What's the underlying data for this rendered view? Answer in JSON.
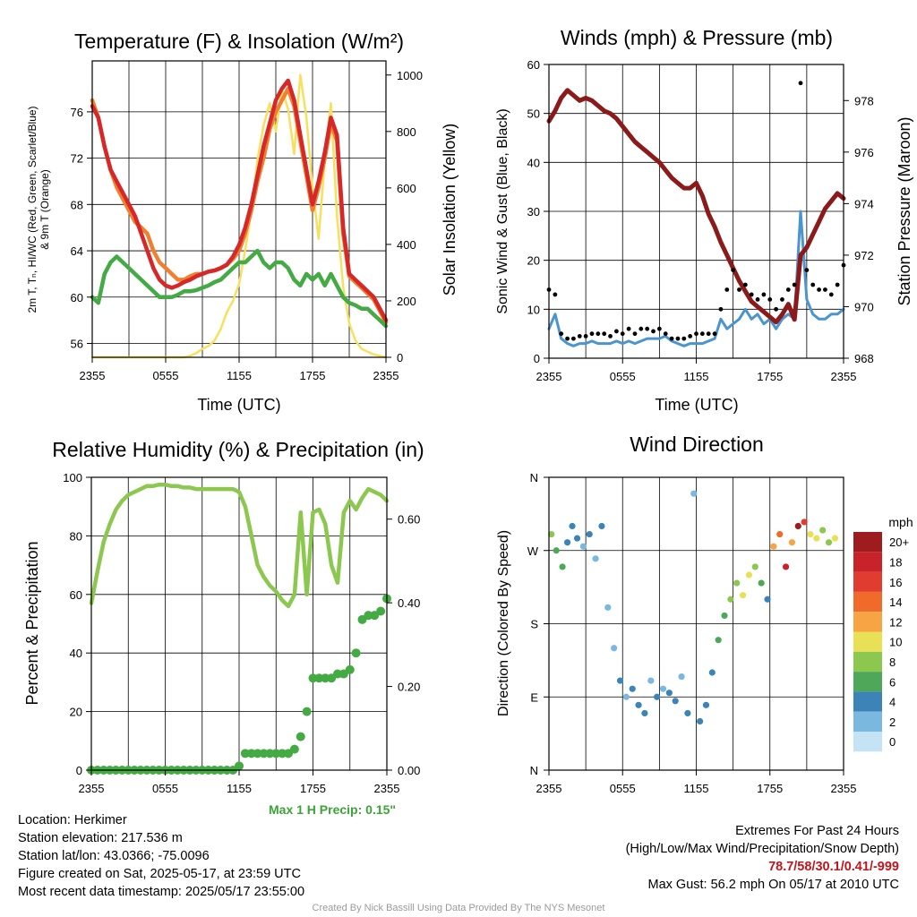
{
  "colors": {
    "temp": "#d62828",
    "dew": "#44aa44",
    "nine_m": "#f08030",
    "solar": "#f6e05e",
    "wind": "#4a95d0",
    "gust": "#000000",
    "pressure": "#8b1a1a",
    "rh": "#8cc850",
    "precip": "#44aa44"
  },
  "charts": {
    "temp": {
      "type": "line",
      "title": "Temperature (F) & Insolation (W/m²)",
      "ylabel_left_1": "2m T, Tₙ, HI/WC (Red, Green, Scarlet/Blue)",
      "ylabel_left_2": "& 9m T (Orange)",
      "ylabel_right": "Solar Insolation (Yellow)",
      "xlabel": "Time (UTC)",
      "x_ticks": [
        "2355",
        "0555",
        "1155",
        "1755",
        "2355"
      ],
      "y_left_ticks": [
        "56",
        "60",
        "64",
        "68",
        "72",
        "76"
      ],
      "y_right_ticks": [
        "0",
        "200",
        "400",
        "600",
        "800",
        "1000"
      ]
    },
    "wind": {
      "type": "line",
      "title": "Winds (mph) & Pressure (mb)",
      "ylabel_left": "Sonic Wind & Gust (Blue, Black)",
      "ylabel_right": "Station Pressure (Maroon)",
      "xlabel": "Time (UTC)",
      "x_ticks": [
        "2355",
        "0555",
        "1155",
        "1755",
        "2355"
      ],
      "y_left_ticks": [
        "0",
        "10",
        "20",
        "30",
        "40",
        "50",
        "60"
      ],
      "y_right_ticks": [
        "968",
        "970",
        "972",
        "974",
        "976",
        "978"
      ]
    },
    "rh": {
      "type": "line",
      "title": "Relative Humidity (%) & Precipitation (in)",
      "ylabel_left": "Percent & Precipitation",
      "x_ticks": [
        "2355",
        "0555",
        "1155",
        "1755",
        "2355"
      ],
      "y_left_ticks": [
        "0",
        "20",
        "40",
        "60",
        "80",
        "100"
      ],
      "y_right_ticks": [
        "0.00",
        "0.20",
        "0.40",
        "0.60"
      ],
      "max_precip": "Max 1 H Precip: 0.15\""
    },
    "dir": {
      "type": "scatter",
      "title": "Wind Direction",
      "ylabel_left": "Direction (Colored By Speed)",
      "x_ticks": [
        "2355",
        "0555",
        "1155",
        "1755",
        "2355"
      ],
      "y_ticks": [
        "N",
        "E",
        "S",
        "W",
        "N"
      ],
      "legend_title": "mph",
      "legend_labels": [
        "20+",
        "18",
        "16",
        "14",
        "12",
        "10",
        "8",
        "6",
        "4",
        "2",
        "0"
      ],
      "legend_colors": [
        "#9e1b1e",
        "#c8222a",
        "#e03c30",
        "#f06a2a",
        "#f7a544",
        "#e8e055",
        "#8cc850",
        "#4fa85a",
        "#3c84b8",
        "#7ab8e0",
        "#c4e4f6"
      ]
    }
  },
  "chart_data": [
    {
      "type": "line",
      "title": "Temperature (F) & Insolation (W/m²)",
      "x_hours": [
        0,
        0.5,
        1,
        1.5,
        2,
        2.5,
        3,
        3.5,
        4,
        4.5,
        5,
        5.5,
        6,
        6.5,
        7,
        7.5,
        8,
        8.5,
        9,
        9.5,
        10,
        10.5,
        11,
        11.5,
        12,
        12.5,
        13,
        13.5,
        14,
        14.5,
        15,
        15.5,
        16,
        16.5,
        17,
        17.5,
        18,
        18.5,
        19,
        19.5,
        20,
        20.5,
        21,
        21.5,
        22,
        22.5,
        23,
        23.5,
        24
      ],
      "series": [
        {
          "name": "Red",
          "values": [
            76.5,
            75.5,
            73,
            71,
            70,
            69,
            68,
            67,
            65.5,
            64,
            62.5,
            61.5,
            61,
            60.8,
            61,
            61.3,
            61.5,
            61.8,
            62,
            62.2,
            62.3,
            62.5,
            62.8,
            63.5,
            64.5,
            66,
            68,
            70.5,
            73,
            75,
            77,
            78,
            78.7,
            77,
            74,
            71,
            68,
            70,
            72.5,
            75.5,
            74,
            66,
            62,
            61.5,
            61,
            60.5,
            60,
            59,
            58
          ]
        },
        {
          "name": "Green",
          "values": [
            60,
            59.5,
            62,
            63,
            63.5,
            63,
            62.5,
            62,
            61.5,
            61,
            60.5,
            60,
            60,
            60,
            60.2,
            60.5,
            60.5,
            60.6,
            60.8,
            61,
            61.3,
            61.5,
            62,
            62.5,
            63,
            63,
            63.5,
            64,
            63,
            62.5,
            63,
            63,
            62.5,
            61.5,
            61,
            62,
            61.5,
            62,
            61,
            62,
            61,
            60,
            59.5,
            59.3,
            59,
            59,
            58.5,
            58,
            57.5
          ]
        },
        {
          "name": "Orange",
          "values": [
            77,
            75.5,
            73,
            71,
            69.5,
            68.5,
            67.5,
            66.5,
            66,
            65.5,
            64,
            63,
            62.5,
            62,
            61.5,
            61.5,
            61.8,
            62,
            62,
            62.2,
            62.3,
            62.5,
            62.8,
            63.3,
            64,
            65.5,
            67.5,
            70,
            72,
            74.5,
            76,
            77,
            78,
            76.5,
            73.5,
            70.5,
            67.5,
            69.5,
            72,
            75,
            73.5,
            65.5,
            61.8,
            61.3,
            60.8,
            60.3,
            59.8,
            58.8,
            57.8
          ]
        },
        {
          "name": "Yellow",
          "values": [
            0,
            0,
            0,
            0,
            0,
            0,
            0,
            0,
            0,
            0,
            0,
            0,
            0,
            0,
            0,
            0,
            5,
            15,
            30,
            40,
            60,
            100,
            160,
            200,
            260,
            380,
            520,
            700,
            820,
            900,
            800,
            950,
            880,
            720,
            1000,
            850,
            600,
            420,
            700,
            900,
            500,
            250,
            120,
            60,
            30,
            20,
            10,
            5,
            0
          ]
        }
      ]
    },
    {
      "type": "line",
      "title": "Winds (mph) & Pressure (mb)",
      "x_hours": [
        0,
        0.5,
        1,
        1.5,
        2,
        2.5,
        3,
        3.5,
        4,
        4.5,
        5,
        5.5,
        6,
        6.5,
        7,
        7.5,
        8,
        8.5,
        9,
        9.5,
        10,
        10.5,
        11,
        11.5,
        12,
        12.5,
        13,
        13.5,
        14,
        14.5,
        15,
        15.5,
        16,
        16.5,
        17,
        17.5,
        18,
        18.5,
        19,
        19.5,
        20,
        20.5,
        21,
        21.5,
        22,
        22.5,
        23,
        23.5,
        24
      ],
      "series": [
        {
          "name": "Blue",
          "values": [
            6,
            9,
            4,
            3,
            2.5,
            3,
            3,
            3.5,
            3,
            3,
            3,
            3.5,
            3,
            3.5,
            3,
            3.5,
            4,
            4,
            4,
            4.5,
            3.5,
            3,
            2.5,
            3,
            3,
            3,
            3.5,
            4,
            8,
            6,
            7,
            8,
            10,
            8,
            9,
            7,
            8,
            6,
            8,
            9,
            8,
            30,
            12,
            9,
            8,
            8,
            9,
            9,
            10
          ]
        },
        {
          "name": "Black",
          "values": [
            14,
            13,
            5,
            4,
            4,
            4.5,
            4.5,
            5,
            5,
            5,
            4.5,
            5.5,
            5,
            6,
            5,
            6,
            6,
            5.5,
            6,
            5,
            4,
            4,
            4,
            4.5,
            5,
            5,
            5,
            5,
            10,
            14,
            18,
            14,
            15,
            13,
            12,
            13,
            12,
            10,
            12,
            14,
            15,
            56.2,
            18,
            15,
            14,
            14,
            13,
            15,
            19
          ]
        },
        {
          "name": "Maroon",
          "values": [
            977.2,
            977.6,
            978.1,
            978.4,
            978.2,
            978.0,
            978.1,
            978.0,
            977.8,
            977.6,
            977.5,
            977.3,
            977.0,
            976.7,
            976.4,
            976.2,
            976.0,
            975.8,
            975.6,
            975.3,
            975.0,
            974.8,
            974.6,
            974.6,
            974.8,
            974.3,
            973.6,
            973.1,
            972.5,
            972.0,
            971.5,
            971.0,
            970.6,
            970.2,
            970.0,
            969.8,
            969.6,
            969.4,
            969.7,
            970.1,
            969.5,
            972.0,
            972.3,
            972.8,
            973.3,
            973.8,
            974.1,
            974.4,
            974.2
          ]
        }
      ]
    },
    {
      "type": "line",
      "title": "Relative Humidity (%) & Precipitation (in)",
      "x_hours": [
        0,
        0.5,
        1,
        1.5,
        2,
        2.5,
        3,
        3.5,
        4,
        4.5,
        5,
        5.5,
        6,
        6.5,
        7,
        7.5,
        8,
        8.5,
        9,
        9.5,
        10,
        10.5,
        11,
        11.5,
        12,
        12.5,
        13,
        13.5,
        14,
        14.5,
        15,
        15.5,
        16,
        16.5,
        17,
        17.5,
        18,
        18.5,
        19,
        19.5,
        20,
        20.5,
        21,
        21.5,
        22,
        22.5,
        23,
        23.5,
        24
      ],
      "series": [
        {
          "name": "RH",
          "values": [
            57,
            68,
            78,
            84,
            89,
            92,
            94,
            95,
            96,
            97,
            97,
            97.5,
            97.5,
            97,
            97,
            96.5,
            96.5,
            96,
            96,
            96,
            96,
            96,
            96,
            96,
            95,
            90,
            80,
            70,
            66,
            63,
            61,
            58,
            56,
            60,
            88,
            60,
            88,
            89,
            84,
            70,
            64,
            88,
            92,
            89,
            93,
            96,
            95,
            94,
            92
          ]
        },
        {
          "name": "Precip",
          "values": [
            0,
            0,
            0,
            0,
            0,
            0,
            0,
            0,
            0,
            0,
            0,
            0,
            0,
            0,
            0,
            0,
            0,
            0,
            0,
            0,
            0,
            0,
            0,
            0,
            0.01,
            0.04,
            0.04,
            0.04,
            0.04,
            0.04,
            0.04,
            0.04,
            0.04,
            0.05,
            0.08,
            0.14,
            0.22,
            0.22,
            0.22,
            0.22,
            0.23,
            0.23,
            0.24,
            0.28,
            0.36,
            0.37,
            0.37,
            0.38,
            0.41
          ]
        }
      ]
    },
    {
      "type": "scatter",
      "title": "Wind Direction",
      "x_hours": [
        0.2,
        0.6,
        1.1,
        1.5,
        1.9,
        2.3,
        2.8,
        3.3,
        3.8,
        4.3,
        4.8,
        5.3,
        5.8,
        6.3,
        6.8,
        7.3,
        7.8,
        8.3,
        8.8,
        9.3,
        9.8,
        10.3,
        10.8,
        11.3,
        11.8,
        12.3,
        12.8,
        13.3,
        13.8,
        14.3,
        14.8,
        15.3,
        15.8,
        16.3,
        16.8,
        17.3,
        17.8,
        18.3,
        18.8,
        19.3,
        19.8,
        20.3,
        20.8,
        21.3,
        21.8,
        22.3,
        22.8,
        23.3
      ],
      "direction_deg": [
        290,
        270,
        250,
        280,
        300,
        285,
        275,
        290,
        260,
        300,
        200,
        150,
        110,
        90,
        100,
        80,
        70,
        110,
        90,
        100,
        95,
        85,
        115,
        70,
        340,
        60,
        80,
        120,
        160,
        190,
        210,
        230,
        215,
        240,
        250,
        230,
        210,
        275,
        290,
        250,
        280,
        300,
        305,
        290,
        285,
        295,
        280,
        285
      ],
      "speed_mph": [
        7,
        5,
        6,
        3,
        4,
        4,
        2,
        3,
        2,
        4,
        2,
        2,
        3,
        2,
        3,
        4,
        3,
        2,
        3,
        2,
        3,
        4,
        2,
        3,
        2,
        3,
        4,
        3,
        5,
        6,
        7,
        8,
        9,
        10,
        8,
        6,
        4,
        12,
        14,
        18,
        12,
        20,
        16,
        10,
        9,
        8,
        8,
        10
      ]
    }
  ],
  "info": {
    "location": "Location: Herkimer",
    "elevation": "Station elevation: 217.536 m",
    "latlon": "Station lat/lon: 43.0366; -75.0096",
    "created": "Figure created on Sat, 2025-05-17, at 23:59 UTC",
    "recent": "Most recent data timestamp: 2025/05/17 23:55:00",
    "ext_title": "Extremes For Past 24 Hours",
    "ext_sub": "(High/Low/Max Wind/Precipitation/Snow Depth)",
    "ext_values": "78.7/58/30.1/0.41/-999",
    "max_gust": "Max Gust: 56.2 mph On 05/17 at 2010 UTC"
  },
  "credit": "Created By Nick Bassill Using Data Provided By The NYS Mesonet"
}
